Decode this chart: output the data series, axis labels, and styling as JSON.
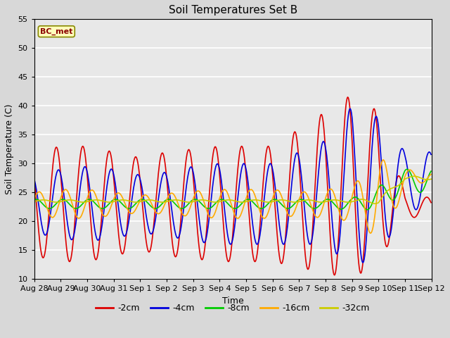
{
  "title": "Soil Temperatures Set B",
  "xlabel": "Time",
  "ylabel": "Soil Temperature (C)",
  "ylim": [
    10,
    55
  ],
  "yticks": [
    10,
    15,
    20,
    25,
    30,
    35,
    40,
    45,
    50,
    55
  ],
  "annotation": "BC_met",
  "fig_facecolor": "#d8d8d8",
  "ax_facecolor": "#e8e8e8",
  "grid_color": "#ffffff",
  "series": {
    "-2cm": {
      "color": "#dd0000",
      "lw": 1.2
    },
    "-4cm": {
      "color": "#0000dd",
      "lw": 1.2
    },
    "-8cm": {
      "color": "#00cc00",
      "lw": 1.2
    },
    "-16cm": {
      "color": "#ffaa00",
      "lw": 1.2
    },
    "-32cm": {
      "color": "#cccc00",
      "lw": 1.2
    }
  },
  "x_tick_labels": [
    "Aug 28",
    "Aug 29",
    "Aug 30",
    "Aug 31",
    "Sep 1",
    "Sep 2",
    "Sep 3",
    "Sep 4",
    "Sep 5",
    "Sep 6",
    "Sep 7",
    "Sep 8",
    "Sep 9",
    "Sep 10",
    "Sep 11",
    "Sep 12"
  ],
  "legend_order": [
    "-2cm",
    "-4cm",
    "-8cm",
    "-16cm",
    "-32cm"
  ],
  "n_days": 15,
  "samples_per_day": 48,
  "afternoon_peak_hour": 14,
  "phase_shifts": {
    "-2cm": 0.0,
    "-4cm": -0.5,
    "-8cm": -1.5,
    "-16cm": -2.2,
    "-32cm": -3.2
  },
  "baselines": {
    "-2cm": [
      23,
      23,
      23,
      23,
      23,
      23,
      23,
      23,
      23,
      23,
      24,
      25,
      26,
      26,
      23,
      22
    ],
    "-4cm": [
      23,
      23,
      23,
      23,
      23,
      23,
      23,
      23,
      23,
      23,
      24,
      25,
      26,
      26,
      27,
      27
    ],
    "-8cm": [
      23,
      23,
      23,
      23,
      23,
      23,
      23,
      23,
      23,
      23,
      23,
      23,
      23,
      24,
      27,
      27
    ],
    "-16cm": [
      23,
      23,
      23,
      23,
      23,
      23,
      23,
      23,
      23,
      23,
      23,
      23,
      23,
      24,
      27,
      28
    ],
    "-32cm": [
      23.5,
      23.5,
      23.5,
      23.5,
      23.5,
      23.5,
      23.5,
      23.5,
      23.5,
      23.5,
      23.5,
      23.5,
      23.5,
      23.5,
      27.5,
      27.5
    ]
  },
  "amplitudes": {
    "-2cm": [
      9,
      10,
      10,
      9,
      8,
      9,
      9.5,
      10,
      10,
      10,
      12,
      14,
      16,
      13,
      2,
      2
    ],
    "-4cm": [
      5,
      6,
      6.5,
      6,
      5,
      5.5,
      6.5,
      7,
      7,
      7,
      8,
      9,
      14,
      12,
      5,
      5
    ],
    "-8cm": [
      0.8,
      0.8,
      0.8,
      0.8,
      0.8,
      0.8,
      0.8,
      0.8,
      0.8,
      0.8,
      0.8,
      0.8,
      1.0,
      2,
      2,
      2
    ],
    "-16cm": [
      2,
      2.5,
      2.5,
      2,
      1.5,
      1.8,
      2.2,
      2.5,
      2.5,
      2.5,
      2,
      2.5,
      3,
      7,
      2,
      0.5
    ],
    "-32cm": [
      0.2,
      0.2,
      0.2,
      0.2,
      0.2,
      0.2,
      0.2,
      0.2,
      0.2,
      0.2,
      0.2,
      0.2,
      0.2,
      0.5,
      0.3,
      0.3
    ]
  }
}
